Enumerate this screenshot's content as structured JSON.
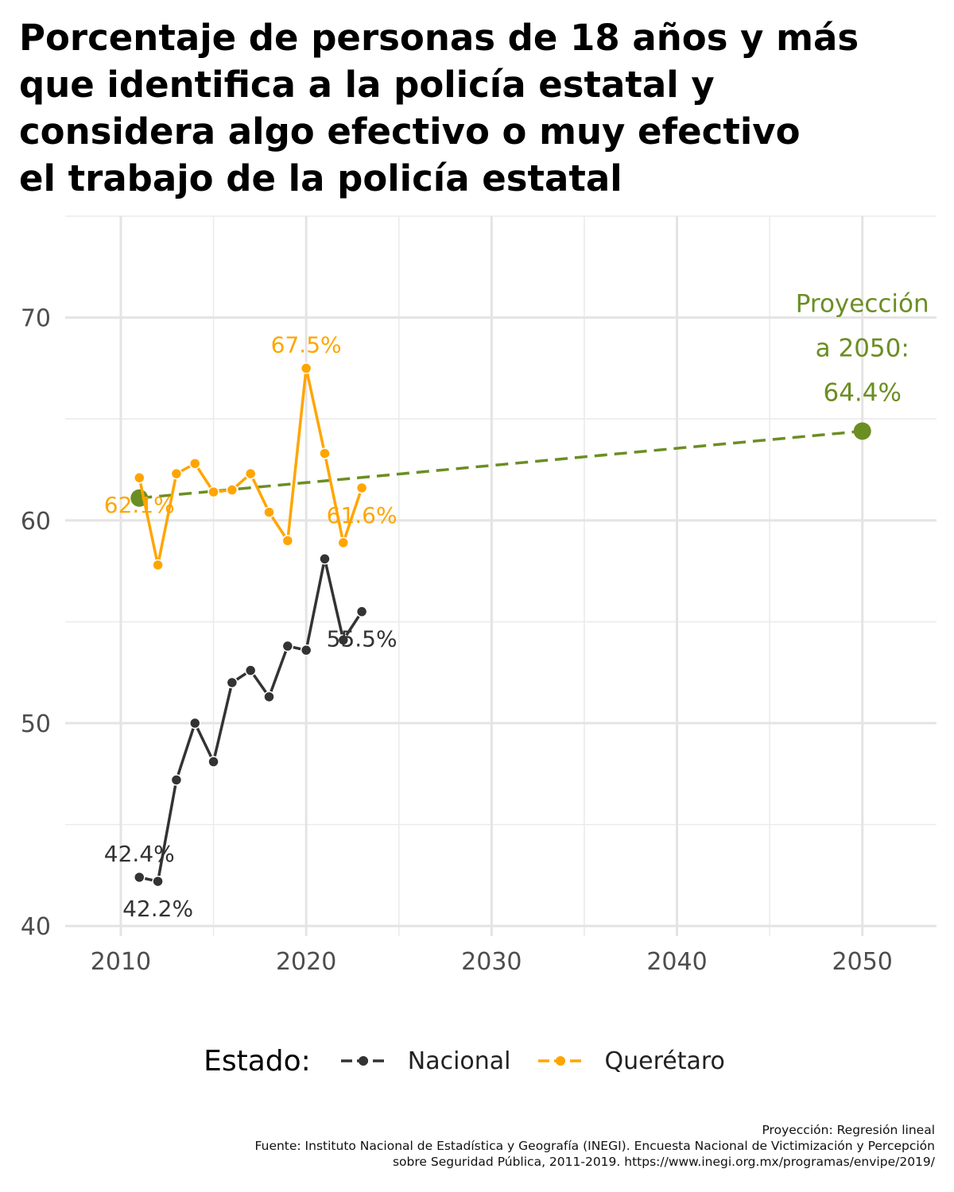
{
  "chart_data": {
    "type": "line",
    "title": [
      "Porcentaje de personas de 18 años y más",
      "que identifica a la policía estatal y",
      "considera algo efectivo o muy efectivo",
      "el trabajo de la policía estatal"
    ],
    "xlabel": "",
    "ylabel": "",
    "xlim": [
      2007,
      2054
    ],
    "ylim": [
      39.5,
      75
    ],
    "x_ticks": [
      2010,
      2020,
      2030,
      2040,
      2050
    ],
    "y_ticks": [
      40,
      50,
      60,
      70
    ],
    "grid": true,
    "legend": {
      "title": "Estado:",
      "placement": "bottom",
      "entries": [
        "Nacional",
        "Querétaro"
      ]
    },
    "series": [
      {
        "name": "Nacional",
        "color": "#333333",
        "x": [
          2011,
          2012,
          2013,
          2014,
          2015,
          2016,
          2017,
          2018,
          2019,
          2020,
          2021,
          2022,
          2023
        ],
        "values": [
          42.4,
          42.2,
          47.2,
          50.0,
          48.1,
          52.0,
          52.6,
          51.3,
          53.8,
          53.6,
          58.1,
          54.1,
          55.5
        ],
        "labels": [
          {
            "x": 2011,
            "text": "42.4%",
            "pos": "above"
          },
          {
            "x": 2012,
            "text": "42.2%",
            "pos": "below"
          },
          {
            "x": 2023,
            "text": "55.5%",
            "pos": "below"
          }
        ]
      },
      {
        "name": "Querétaro",
        "color": "#FFA500",
        "x": [
          2011,
          2012,
          2013,
          2014,
          2015,
          2016,
          2017,
          2018,
          2019,
          2020,
          2021,
          2022,
          2023
        ],
        "values": [
          62.1,
          57.8,
          62.3,
          62.8,
          61.4,
          61.5,
          62.3,
          60.4,
          59.0,
          67.5,
          63.3,
          58.9,
          61.6
        ],
        "labels": [
          {
            "x": 2011,
            "text": "62.1%",
            "pos": "below"
          },
          {
            "x": 2020,
            "text": "67.5%",
            "pos": "above"
          },
          {
            "x": 2023,
            "text": "61.6%",
            "pos": "below"
          }
        ]
      }
    ],
    "projection": {
      "color": "#6B8E23",
      "style": "dashed",
      "x": [
        2011,
        2050
      ],
      "values": [
        61.1,
        64.4
      ],
      "annotation": [
        "Proyección",
        "a 2050:",
        "64.4%"
      ]
    },
    "caption": [
      "Proyección: Regresión lineal",
      "Fuente: Instituto Nacional de Estadística y Geografía (INEGI). Encuesta Nacional de Victimización y Percepción",
      "sobre Seguridad Pública, 2011-2019. https://www.inegi.org.mx/programas/envipe/2019/"
    ]
  }
}
